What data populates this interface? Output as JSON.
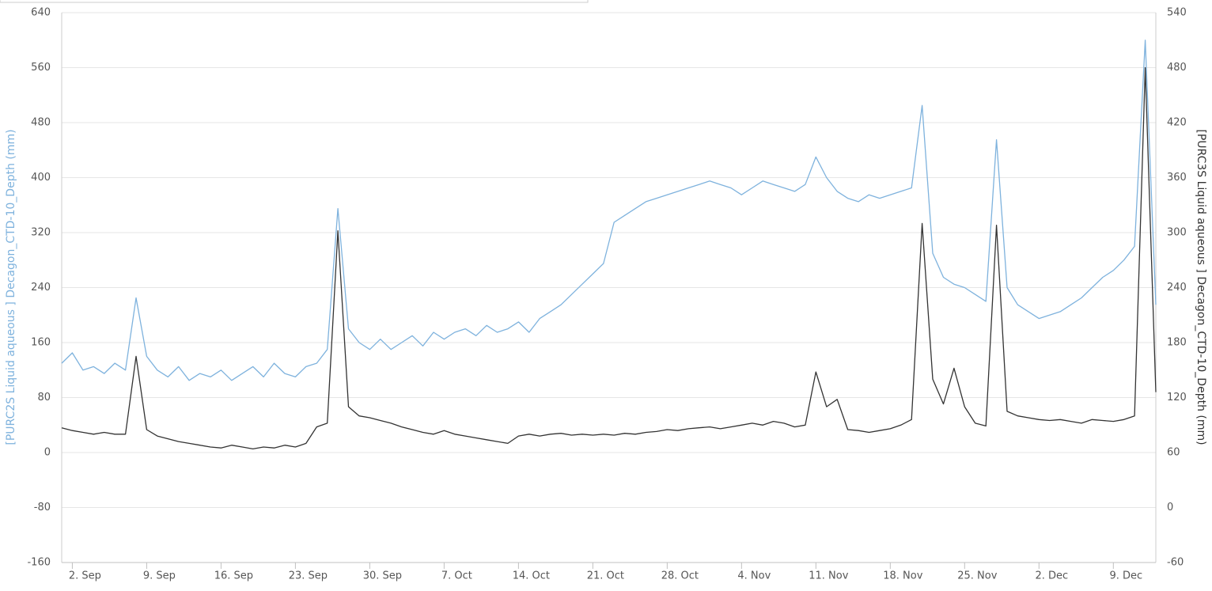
{
  "chart_data": {
    "type": "line",
    "y_label": "[PURC2S Liquid aqueous ] Decagon_CTD-10_Depth (mm)",
    "y2_label": "[PURC3S Liquid aqueous ] Decagon_CTD-10_Depth (mm)",
    "x": [
      -1,
      0,
      1,
      2,
      3,
      4,
      5,
      6,
      7,
      8,
      9,
      10,
      11,
      12,
      13,
      14,
      15,
      16,
      17,
      18,
      19,
      20,
      21,
      22,
      23,
      24,
      25,
      26,
      27,
      28,
      29,
      30,
      31,
      32,
      33,
      34,
      35,
      36,
      37,
      38,
      39,
      40,
      41,
      42,
      43,
      44,
      45,
      46,
      47,
      48,
      49,
      50,
      51,
      52,
      53,
      54,
      55,
      56,
      57,
      58,
      59,
      60,
      61,
      62,
      63,
      64,
      65,
      66,
      67,
      68,
      69,
      70,
      71,
      72,
      73,
      74,
      75,
      76,
      77,
      78,
      79,
      80,
      81,
      82,
      83,
      84,
      85,
      86,
      87,
      88,
      89,
      90,
      91,
      92,
      93,
      94,
      95,
      96,
      97,
      98,
      99,
      100,
      101,
      102
    ],
    "xlim": [
      -1,
      102
    ],
    "xticks": [
      {
        "value": 0,
        "label": "2. Sep"
      },
      {
        "value": 7,
        "label": "9. Sep"
      },
      {
        "value": 14,
        "label": "16. Sep"
      },
      {
        "value": 21,
        "label": "23. Sep"
      },
      {
        "value": 28,
        "label": "30. Sep"
      },
      {
        "value": 35,
        "label": "7. Oct"
      },
      {
        "value": 42,
        "label": "14. Oct"
      },
      {
        "value": 49,
        "label": "21. Oct"
      },
      {
        "value": 56,
        "label": "28. Oct"
      },
      {
        "value": 63,
        "label": "4. Nov"
      },
      {
        "value": 70,
        "label": "11. Nov"
      },
      {
        "value": 77,
        "label": "18. Nov"
      },
      {
        "value": 84,
        "label": "25. Nov"
      },
      {
        "value": 91,
        "label": "2. Dec"
      },
      {
        "value": 98,
        "label": "9. Dec"
      }
    ],
    "ylim": [
      -160,
      640
    ],
    "yticks": [
      -160,
      -80,
      0,
      80,
      160,
      240,
      320,
      400,
      480,
      560,
      640
    ],
    "y2lim": [
      -60,
      540
    ],
    "y2ticks": [
      -60,
      0,
      60,
      120,
      180,
      240,
      300,
      360,
      420,
      480,
      540
    ],
    "grid": true,
    "series": [
      {
        "color": "#7eb2dd",
        "values": [
          130,
          145,
          120,
          125,
          115,
          130,
          120,
          225,
          140,
          120,
          110,
          125,
          105,
          115,
          110,
          120,
          105,
          115,
          125,
          110,
          130,
          115,
          110,
          125,
          130,
          150,
          355,
          180,
          160,
          150,
          165,
          150,
          160,
          170,
          155,
          175,
          165,
          175,
          180,
          170,
          185,
          175,
          180,
          190,
          175,
          195,
          205,
          215,
          230,
          245,
          260,
          275,
          335,
          345,
          355,
          365,
          370,
          375,
          380,
          385,
          390,
          395,
          390,
          385,
          375,
          385,
          395,
          390,
          385,
          380,
          390,
          430,
          400,
          380,
          370,
          365,
          375,
          370,
          375,
          380,
          385,
          505,
          290,
          255,
          245,
          240,
          230,
          220,
          455,
          240,
          215,
          205,
          195,
          200,
          205,
          215,
          225,
          240,
          255,
          265,
          280,
          300,
          600,
          215
        ]
      },
      {
        "color": "#333333",
        "axis": "y2",
        "values": [
          87,
          84,
          82,
          80,
          82,
          80,
          80,
          165,
          85,
          78,
          75,
          72,
          70,
          68,
          66,
          65,
          68,
          66,
          64,
          66,
          65,
          68,
          66,
          70,
          88,
          92,
          302,
          110,
          100,
          98,
          95,
          92,
          88,
          85,
          82,
          80,
          84,
          80,
          78,
          76,
          74,
          72,
          70,
          78,
          80,
          78,
          80,
          81,
          79,
          80,
          79,
          80,
          79,
          81,
          80,
          82,
          83,
          85,
          84,
          86,
          87,
          88,
          86,
          88,
          90,
          92,
          90,
          94,
          92,
          88,
          90,
          148,
          110,
          118,
          85,
          84,
          82,
          84,
          86,
          90,
          96,
          310,
          140,
          113,
          152,
          110,
          92,
          89,
          308,
          105,
          100,
          98,
          96,
          95,
          96,
          94,
          92,
          96,
          95,
          94,
          96,
          100,
          480,
          126
        ]
      }
    ]
  }
}
